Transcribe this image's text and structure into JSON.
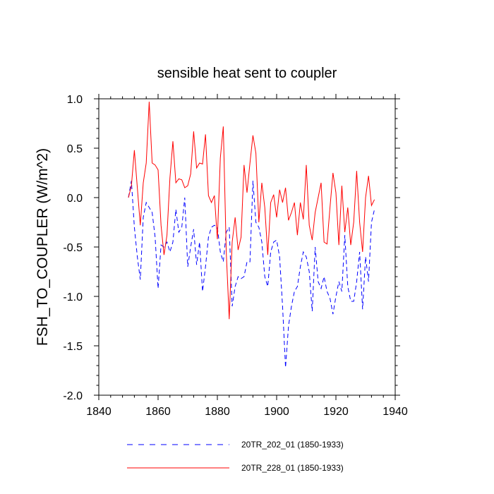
{
  "chart_data": {
    "type": "line",
    "title": "sensible heat sent to coupler",
    "xlabel": "",
    "ylabel": "FSH_TO_COUPLER  (W/m^2)",
    "xlim": [
      1840,
      1940
    ],
    "ylim": [
      -2.0,
      1.0
    ],
    "xticks": [
      1840,
      1860,
      1880,
      1900,
      1920,
      1940
    ],
    "xtick_labels": [
      "1840",
      "1860",
      "1880",
      "1900",
      "1920",
      "1940"
    ],
    "yticks": [
      -2.0,
      -1.5,
      -1.0,
      -0.5,
      0.0,
      0.5,
      1.0
    ],
    "ytick_labels": [
      "-2.0",
      "-1.5",
      "-1.0",
      "-0.5",
      "0.0",
      "0.5",
      "1.0"
    ],
    "grid": false,
    "legend_position": "bottom",
    "x": [
      1850,
      1851,
      1852,
      1853,
      1854,
      1855,
      1856,
      1857,
      1858,
      1859,
      1860,
      1861,
      1862,
      1863,
      1864,
      1865,
      1866,
      1867,
      1868,
      1869,
      1870,
      1871,
      1872,
      1873,
      1874,
      1875,
      1876,
      1877,
      1878,
      1879,
      1880,
      1881,
      1882,
      1883,
      1884,
      1885,
      1886,
      1887,
      1888,
      1889,
      1890,
      1891,
      1892,
      1893,
      1894,
      1895,
      1896,
      1897,
      1898,
      1899,
      1900,
      1901,
      1902,
      1903,
      1904,
      1905,
      1906,
      1907,
      1908,
      1909,
      1910,
      1911,
      1912,
      1913,
      1914,
      1915,
      1916,
      1917,
      1918,
      1919,
      1920,
      1921,
      1922,
      1923,
      1924,
      1925,
      1926,
      1927,
      1928,
      1929,
      1930,
      1931,
      1932,
      1933
    ],
    "series": [
      {
        "name": "20TR_202_01 (1850-1933)",
        "color": "#0000ff",
        "dash": "dashed",
        "values": [
          0.0,
          0.17,
          -0.3,
          -0.6,
          -0.83,
          -0.2,
          -0.05,
          -0.1,
          -0.15,
          -0.4,
          -0.92,
          -0.48,
          -0.5,
          -0.45,
          -0.55,
          -0.45,
          -0.12,
          -0.35,
          -0.3,
          0.0,
          -0.7,
          -0.5,
          -0.32,
          -0.68,
          -0.45,
          -0.95,
          -0.7,
          -0.4,
          -0.3,
          -0.28,
          -0.3,
          -0.55,
          -0.65,
          -0.35,
          -0.3,
          -1.1,
          -0.9,
          -0.8,
          -0.82,
          -0.8,
          -0.65,
          -0.65,
          0.17,
          -0.25,
          -0.3,
          -0.45,
          -0.8,
          -0.9,
          -0.55,
          -0.45,
          -0.43,
          -0.6,
          -1.1,
          -1.72,
          -1.3,
          -1.1,
          -0.95,
          -0.9,
          -0.7,
          -0.55,
          -0.6,
          -0.75,
          -1.15,
          -0.5,
          -0.85,
          -0.92,
          -0.8,
          -0.95,
          -1.02,
          -1.18,
          -1.0,
          -0.85,
          -0.95,
          -0.38,
          -0.9,
          -1.05,
          -1.05,
          -0.85,
          -0.55,
          -1.13,
          -0.6,
          -0.85,
          -0.25,
          -0.12
        ]
      },
      {
        "name": "20TR_228_01 (1850-1933)",
        "color": "#ff0000",
        "dash": "solid",
        "values": [
          0.0,
          0.12,
          0.48,
          0.1,
          -0.28,
          0.15,
          0.35,
          0.97,
          0.35,
          0.33,
          0.28,
          -0.28,
          -0.58,
          -0.38,
          0.2,
          0.57,
          0.15,
          0.19,
          0.18,
          0.1,
          0.12,
          0.24,
          0.67,
          0.3,
          0.35,
          0.34,
          0.64,
          0.02,
          -0.05,
          0.02,
          -0.42,
          0.4,
          0.72,
          -0.55,
          -1.23,
          -0.45,
          -0.2,
          -0.53,
          -0.4,
          0.33,
          0.05,
          0.35,
          0.63,
          0.45,
          -0.25,
          0.15,
          -0.1,
          -0.58,
          -0.05,
          0.03,
          -0.2,
          0.08,
          -0.05,
          0.1,
          -0.23,
          -0.15,
          -0.05,
          -0.38,
          -0.05,
          -0.22,
          0.33,
          -0.28,
          -0.43,
          -0.15,
          0.0,
          0.15,
          -0.45,
          -0.47,
          -0.1,
          0.25,
          0.05,
          -0.48,
          0.12,
          -0.35,
          -0.1,
          -0.48,
          -0.25,
          0.27,
          -0.25,
          -0.55,
          0.0,
          0.22,
          -0.08,
          -0.02
        ]
      }
    ]
  }
}
